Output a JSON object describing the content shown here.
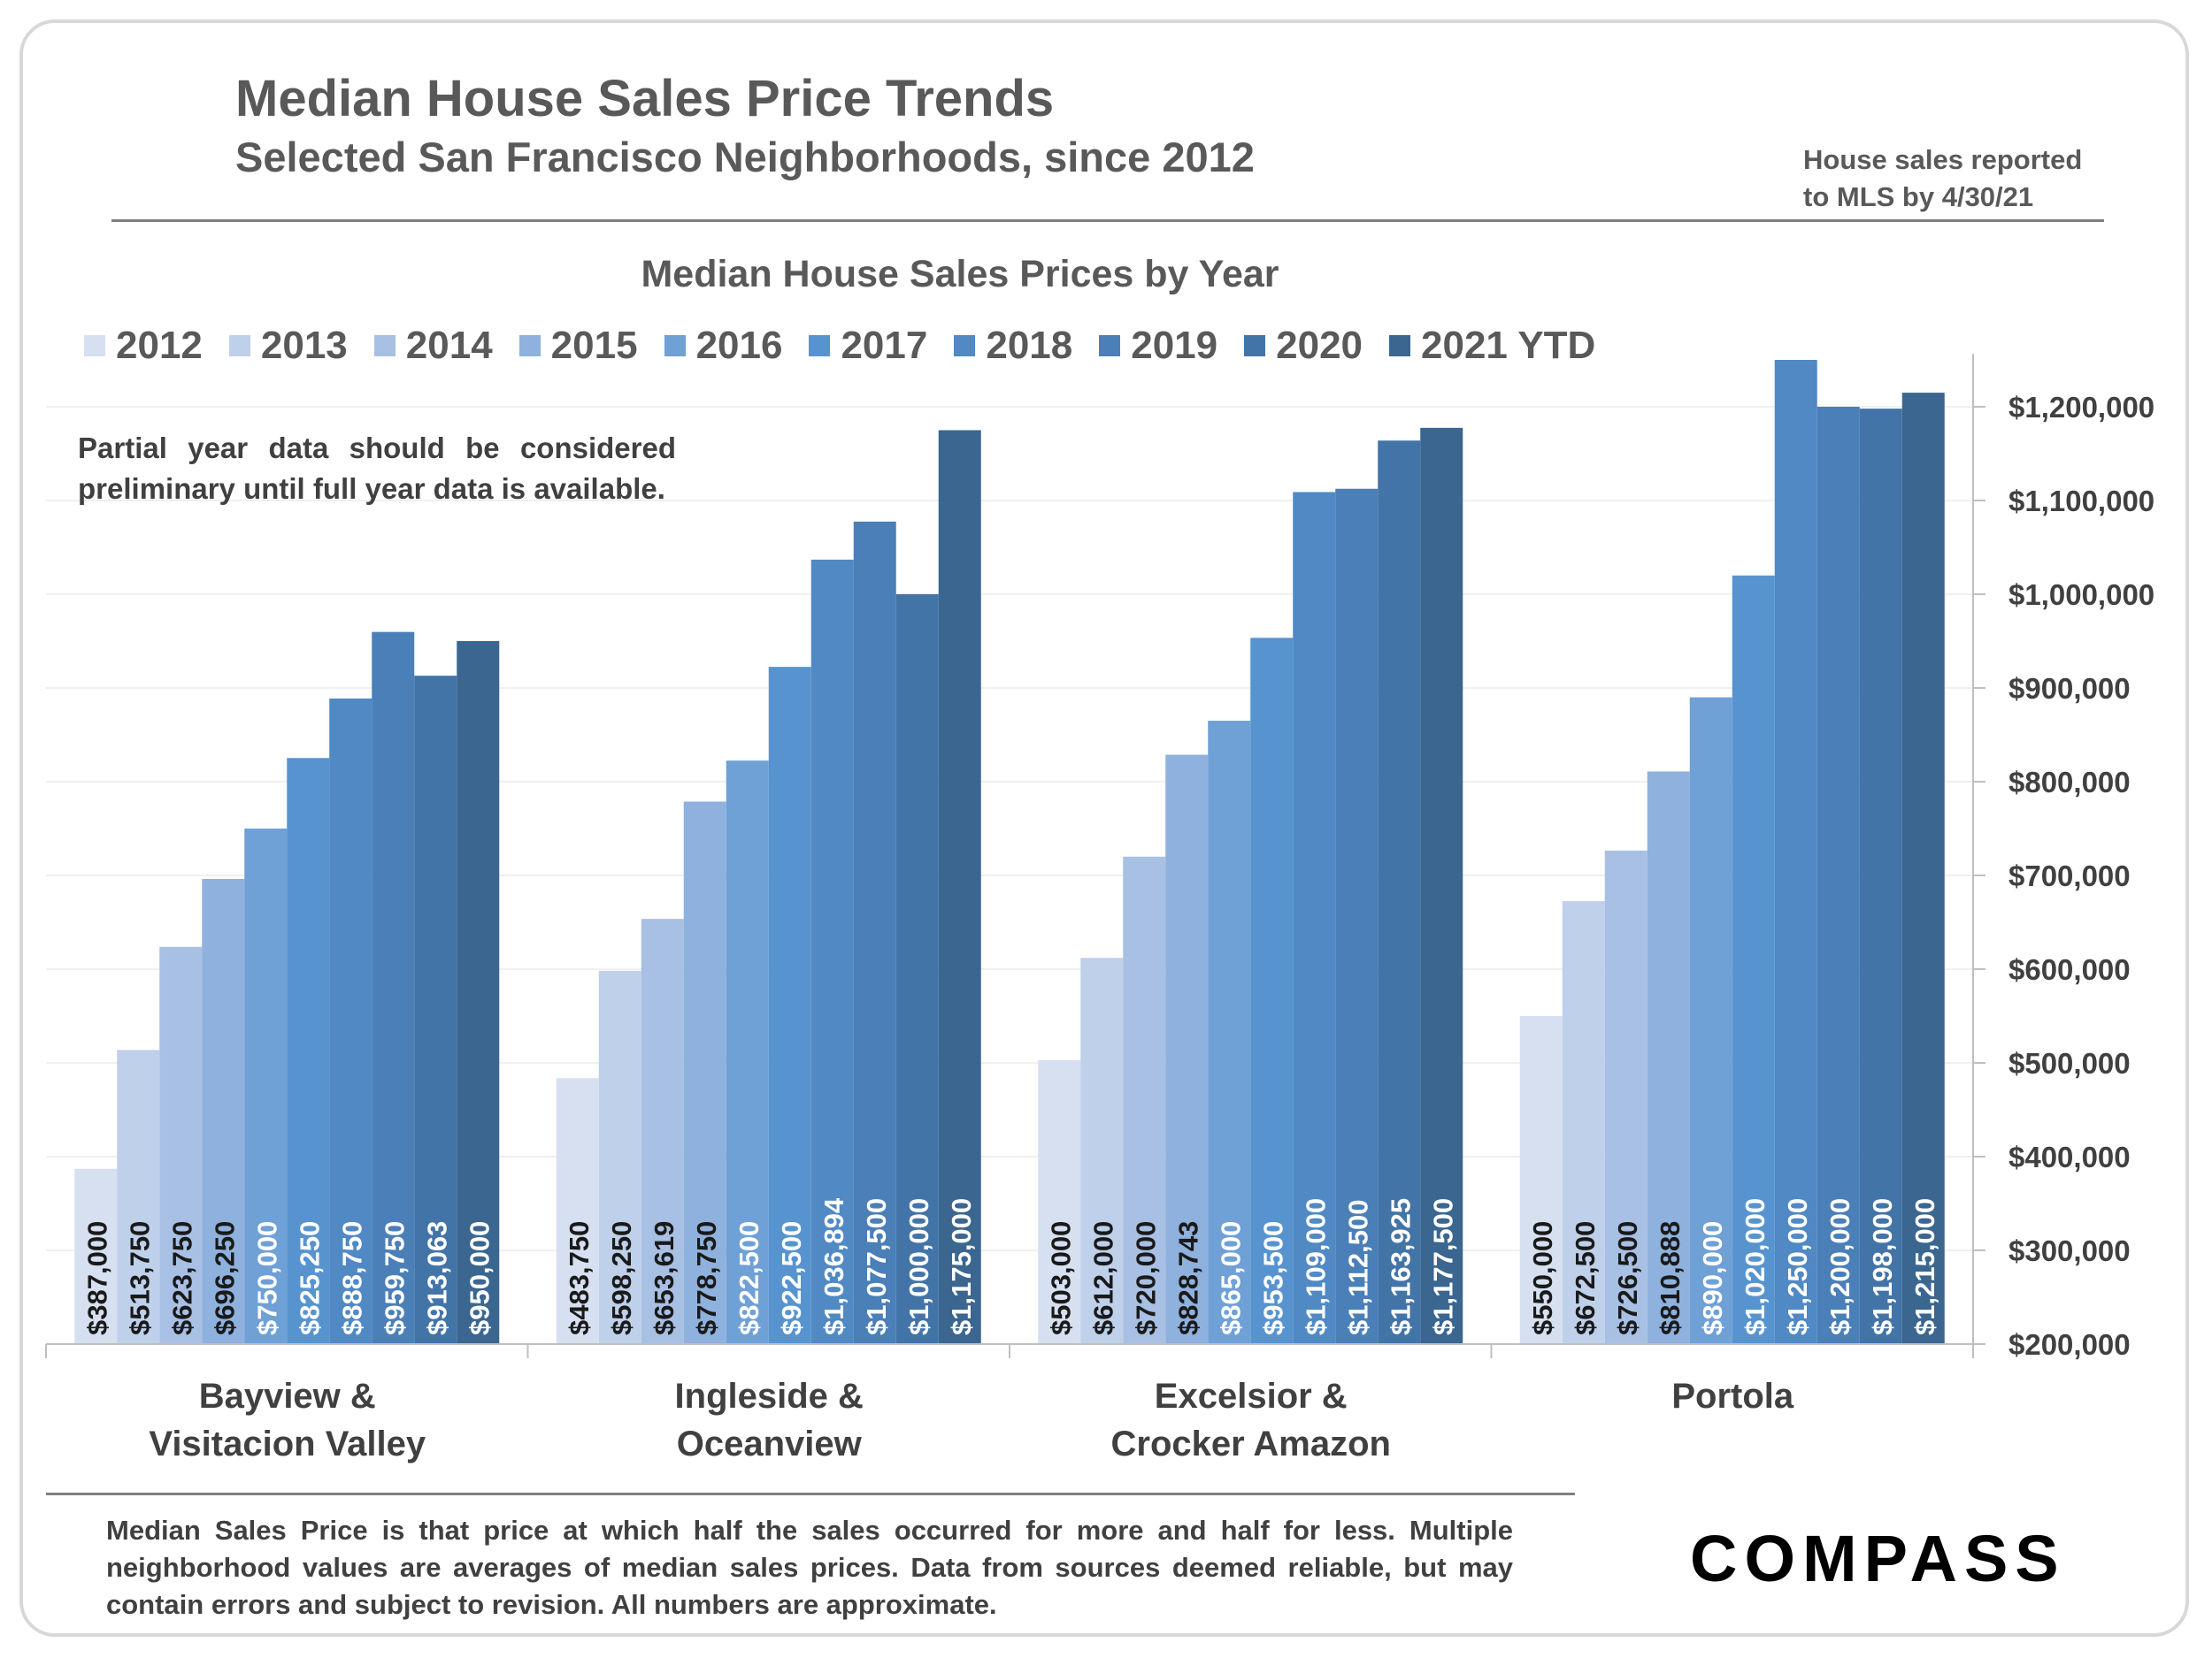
{
  "header": {
    "title": "Median House Sales Price Trends",
    "subtitle": "Selected San Francisco Neighborhoods, since 2012",
    "note_line1": "House sales reported",
    "note_line2": "to MLS by 4/30/21"
  },
  "partial_note": "Partial year data should be considered preliminary until full year data is available.",
  "footnote": "Median Sales Price is that price at which half the sales occurred for more and half for less. Multiple neighborhood values are averages of median sales prices. Data from sources deemed reliable, but may contain errors and subject to revision.  All numbers are approximate.",
  "logo_text": "COMPASS",
  "chart_data": {
    "type": "bar",
    "title": "Median House Sales Prices by Year",
    "categories": [
      {
        "line1": "Bayview &",
        "line2": "Visitacion Valley"
      },
      {
        "line1": "Ingleside &",
        "line2": "Oceanview"
      },
      {
        "line1": "Excelsior &",
        "line2": "Crocker Amazon"
      },
      {
        "line1": "Portola",
        "line2": ""
      }
    ],
    "series": [
      {
        "name": "2012",
        "color": "#d6e0f1",
        "values": [
          387000,
          483750,
          503000,
          550000
        ],
        "labels": [
          "$387,000",
          "$483,750",
          "$503,000",
          "$550,000"
        ]
      },
      {
        "name": "2013",
        "color": "#bfd0ea",
        "values": [
          513750,
          598250,
          612000,
          672500
        ],
        "labels": [
          "$513,750",
          "$598,250",
          "$612,000",
          "$672,500"
        ]
      },
      {
        "name": "2014",
        "color": "#a8c0e4",
        "values": [
          623750,
          653619,
          720000,
          726500
        ],
        "labels": [
          "$623,750",
          "$653,619",
          "$720,000",
          "$726,500"
        ]
      },
      {
        "name": "2015",
        "color": "#8fb1dd",
        "values": [
          696250,
          778750,
          828743,
          810888
        ],
        "labels": [
          "$696,250",
          "$778,750",
          "$828,743",
          "$810,888"
        ]
      },
      {
        "name": "2016",
        "color": "#6fa0d6",
        "values": [
          750000,
          822500,
          865000,
          890000
        ],
        "labels": [
          "$750,000",
          "$822,500",
          "$865,000",
          "$890,000"
        ]
      },
      {
        "name": "2017",
        "color": "#5794cf",
        "values": [
          825250,
          922500,
          953500,
          1020000
        ],
        "labels": [
          "$825,250",
          "$922,500",
          "$953,500",
          "$1,020,000"
        ]
      },
      {
        "name": "2018",
        "color": "#5089c4",
        "values": [
          888750,
          1036894,
          1109000,
          1250000
        ],
        "labels": [
          "$888,750",
          "$1,036,894",
          "$1,109,000",
          "$1,250,000"
        ]
      },
      {
        "name": "2019",
        "color": "#4a7fb8",
        "values": [
          959750,
          1077500,
          1112500,
          1200000
        ],
        "labels": [
          "$959,750",
          "$1,077,500",
          "$1,112,500",
          "$1,200,000"
        ]
      },
      {
        "name": "2020",
        "color": "#4374a8",
        "values": [
          913063,
          1000000,
          1163925,
          1198000
        ],
        "labels": [
          "$913,063",
          "$1,000,000",
          "$1,163,925",
          "$1,198,000"
        ]
      },
      {
        "name": "2021 YTD",
        "color": "#3a6690",
        "values": [
          950000,
          1175000,
          1177500,
          1215000
        ],
        "labels": [
          "$950,000",
          "$1,175,000",
          "$1,177,500",
          "$1,215,000"
        ]
      }
    ],
    "ylim": [
      200000,
      1300000
    ],
    "y_ticks": [
      200000,
      300000,
      400000,
      500000,
      600000,
      700000,
      800000,
      900000,
      1000000,
      1100000,
      1200000
    ],
    "y_tick_labels": [
      "$200,000",
      "$300,000",
      "$400,000",
      "$500,000",
      "$600,000",
      "$700,000",
      "$800,000",
      "$900,000",
      "$1,000,000",
      "$1,100,000",
      "$1,200,000"
    ],
    "y_axis_position": "right",
    "grid": true,
    "legend_position": "top"
  }
}
